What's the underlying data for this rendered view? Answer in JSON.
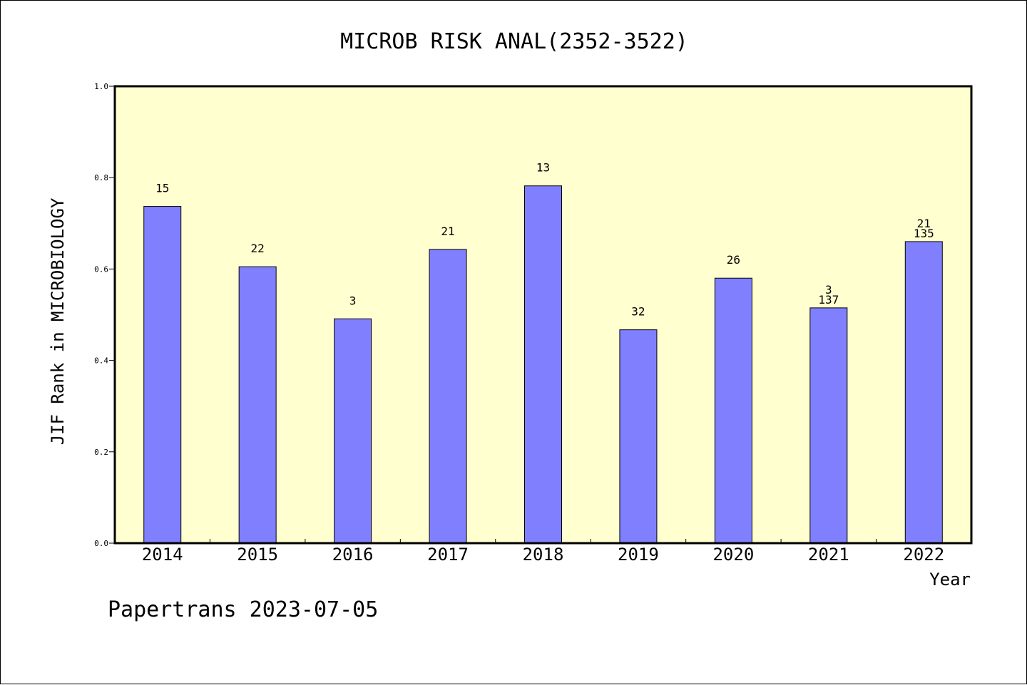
{
  "chart_data": {
    "type": "bar",
    "title": "MICROB RISK ANAL(2352-3522)",
    "xlabel": "Year",
    "ylabel": "JIF Rank in MICROBIOLOGY",
    "ylim": [
      0,
      1.0
    ],
    "yticks": [
      "0.0",
      "0.2",
      "0.4",
      "0.6",
      "0.8",
      "1.0"
    ],
    "categories": [
      "2014",
      "2015",
      "2016",
      "2017",
      "2018",
      "2019",
      "2020",
      "2021",
      "2022"
    ],
    "values": [
      0.737,
      0.605,
      0.491,
      0.643,
      0.782,
      0.467,
      0.58,
      0.515,
      0.66
    ],
    "labels_top": [
      "15",
      "22",
      "3",
      "21",
      "13",
      "32",
      "26",
      "3",
      "21"
    ],
    "labels_bottom": [
      "",
      "",
      "",
      "",
      "",
      "",
      "",
      "137",
      "135"
    ],
    "plot_background": "#ffffd0",
    "bar_color": "#8080ff",
    "grid": false,
    "legend": "none"
  },
  "footer": "Papertrans 2023-07-05"
}
